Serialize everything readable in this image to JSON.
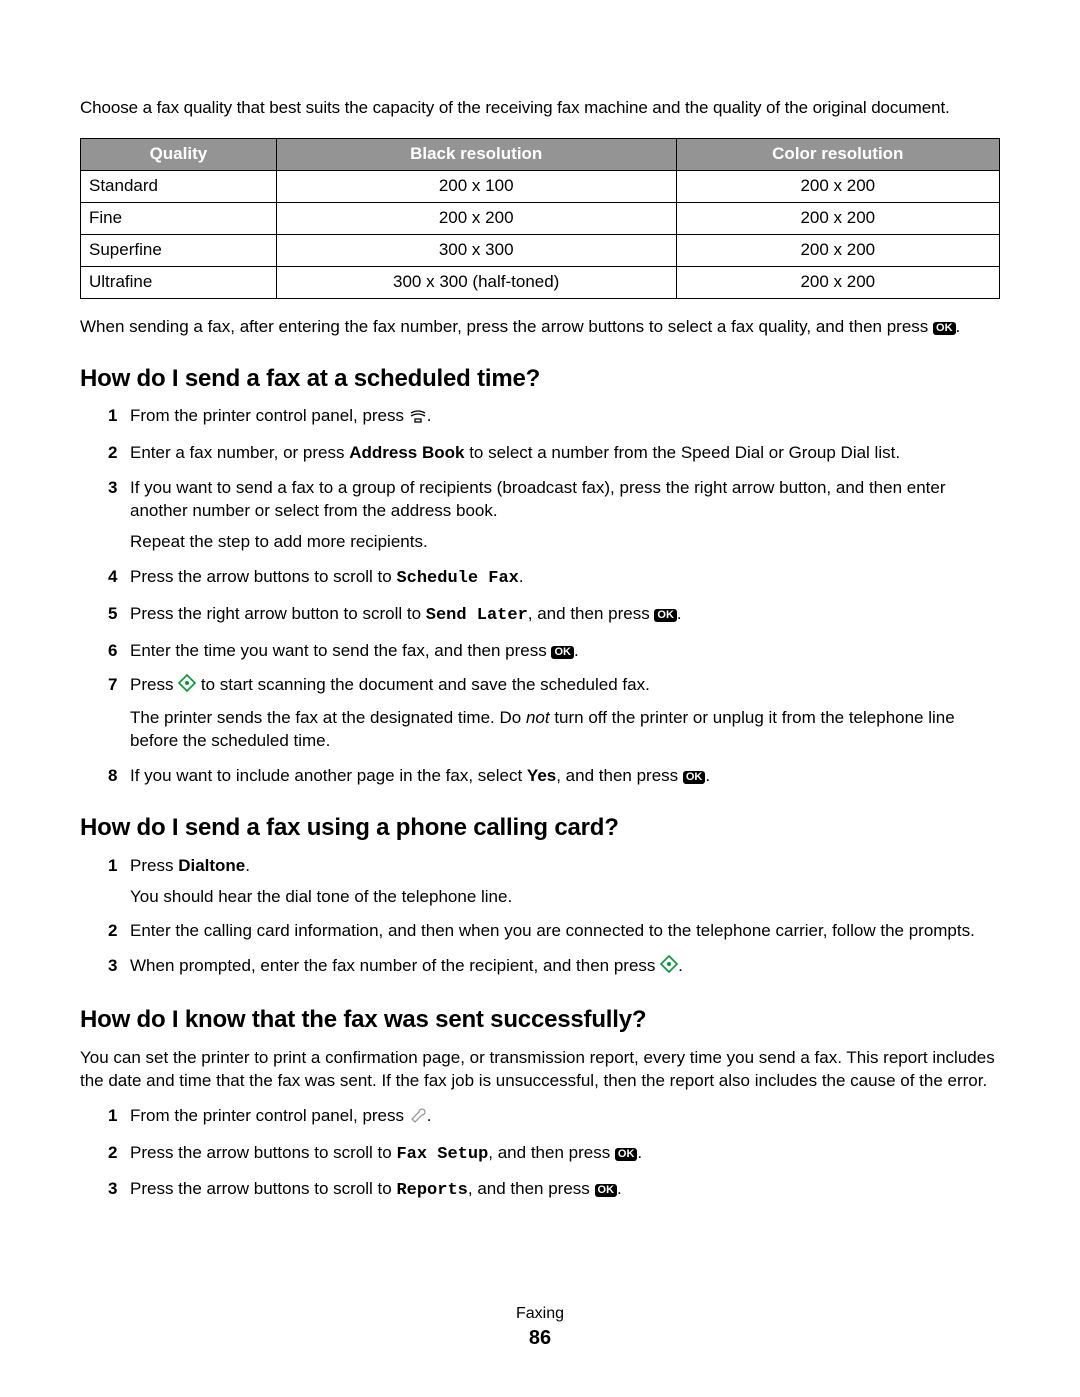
{
  "intro": "Choose a fax quality that best suits the capacity of the receiving fax machine and the quality of the original document.",
  "resolution_table": {
    "type": "table",
    "header_bg": "#949494",
    "header_fg": "#ffffff",
    "border_color": "#000000",
    "columns": [
      "Quality",
      "Black resolution",
      "Color resolution"
    ],
    "col_align": [
      "left",
      "center",
      "center"
    ],
    "rows": [
      [
        "Standard",
        "200 x 100",
        "200 x 200"
      ],
      [
        "Fine",
        "200 x 200",
        "200 x 200"
      ],
      [
        "Superfine",
        "300 x 300",
        "200 x 200"
      ],
      [
        "Ultrafine",
        "300 x 300 (half-toned)",
        "200 x 200"
      ]
    ]
  },
  "post_table_1": "When sending a fax, after entering the fax number, press the arrow buttons to select a fax quality, and then press ",
  "post_table_2": ".",
  "icons": {
    "ok_label": "OK",
    "fax_glyph_stroke": "#000000",
    "diamond_stroke": "#009933",
    "wrench_stroke": "#9a9a9a"
  },
  "section1": {
    "title": "How do I send a fax at a scheduled time?",
    "steps": {
      "1": {
        "a": "From the printer control panel, press ",
        "b": "."
      },
      "2": {
        "a": "Enter a fax number, or press ",
        "bold": "Address Book",
        "b": " to select a number from the Speed Dial or Group Dial list."
      },
      "3": {
        "a": "If you want to send a fax to a group of recipients (broadcast fax), press the right arrow button, and then enter another number or select from the address book.",
        "sub": "Repeat the step to add more recipients."
      },
      "4": {
        "a": "Press the arrow buttons to scroll to ",
        "mono": "Schedule Fax",
        "b": "."
      },
      "5": {
        "a": "Press the right arrow button to scroll to ",
        "mono": "Send Later",
        "b": ", and then press ",
        "c": "."
      },
      "6": {
        "a": "Enter the time you want to send the fax, and then press ",
        "b": "."
      },
      "7": {
        "a": "Press ",
        "b": " to start scanning the document and save the scheduled fax.",
        "sub_a": "The printer sends the fax at the designated time. Do ",
        "sub_i": "not",
        "sub_b": " turn off the printer or unplug it from the telephone line before the scheduled time."
      },
      "8": {
        "a": "If you want to include another page in the fax, select ",
        "bold": "Yes",
        "b": ", and then press ",
        "c": "."
      }
    }
  },
  "section2": {
    "title": "How do I send a fax using a phone calling card?",
    "steps": {
      "1": {
        "a": "Press ",
        "bold": "Dialtone",
        "b": ".",
        "sub": "You should hear the dial tone of the telephone line."
      },
      "2": {
        "a": "Enter the calling card information, and then when you are connected to the telephone carrier, follow the prompts."
      },
      "3": {
        "a": "When prompted, enter the fax number of the recipient, and then press ",
        "b": "."
      }
    }
  },
  "section3": {
    "title": "How do I know that the fax was sent successfully?",
    "body": "You can set the printer to print a confirmation page, or transmission report, every time you send a fax. This report includes the date and time that the fax was sent. If the fax job is unsuccessful, then the report also includes the cause of the error.",
    "steps": {
      "1": {
        "a": "From the printer control panel, press ",
        "b": "."
      },
      "2": {
        "a": "Press the arrow buttons to scroll to ",
        "mono": "Fax Setup",
        "b": ", and then press ",
        "c": "."
      },
      "3": {
        "a": "Press the arrow buttons to scroll to ",
        "mono": "Reports",
        "b": ", and then press ",
        "c": "."
      }
    }
  },
  "footer": {
    "section": "Faxing",
    "page": "86"
  }
}
